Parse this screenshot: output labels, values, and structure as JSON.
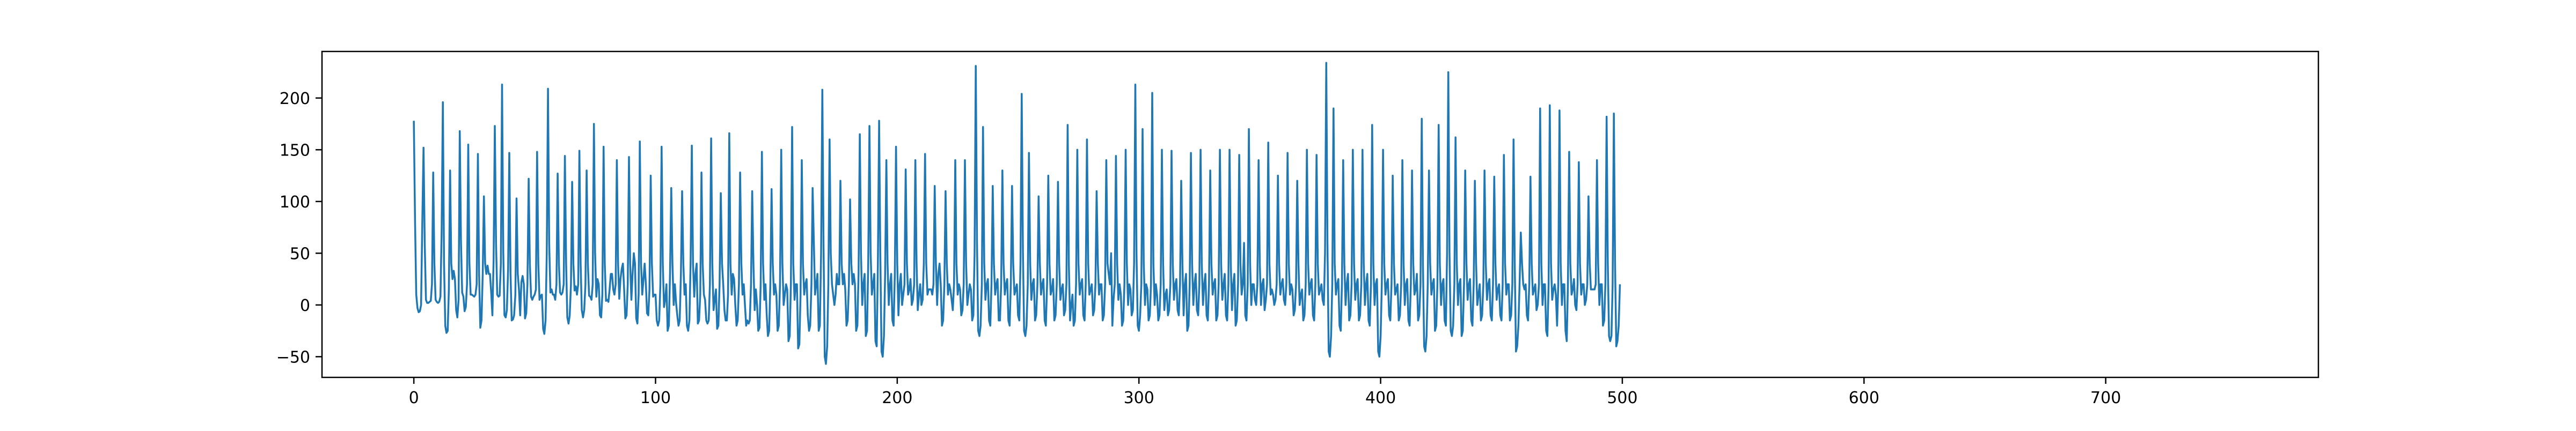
{
  "chart_data": {
    "type": "line",
    "title": "",
    "xlabel": "",
    "ylabel": "",
    "xlim": [
      -38,
      788
    ],
    "ylim": [
      -70,
      245
    ],
    "xticks": [
      0,
      100,
      200,
      300,
      400,
      500,
      600,
      700
    ],
    "xtick_labels": [
      "0",
      "100",
      "200",
      "300",
      "400",
      "500",
      "600",
      "700"
    ],
    "yticks": [
      -50,
      0,
      50,
      100,
      150,
      200
    ],
    "ytick_labels": [
      "−50",
      "0",
      "50",
      "100",
      "150",
      "200"
    ],
    "grid": false,
    "legend": "none",
    "line_color": "#1f77b4",
    "series": [
      {
        "x_start": 0,
        "x_step": 0.5,
        "values": [
          178,
          80,
          10,
          -3,
          -7,
          -6,
          0,
          80,
          152,
          60,
          5,
          2,
          2,
          3,
          4,
          20,
          128,
          40,
          5,
          3,
          2,
          3,
          8,
          70,
          196,
          40,
          -20,
          -27,
          -25,
          15,
          130,
          40,
          25,
          33,
          25,
          -5,
          -12,
          5,
          168,
          60,
          12,
          8,
          -6,
          -2,
          20,
          155,
          40,
          10,
          10,
          9,
          8,
          10,
          20,
          146,
          30,
          -22,
          -15,
          30,
          105,
          40,
          30,
          38,
          30,
          30,
          12,
          -10,
          45,
          173,
          60,
          10,
          8,
          9,
          40,
          213,
          50,
          -10,
          -12,
          -5,
          35,
          147,
          30,
          -15,
          -14,
          -10,
          10,
          103,
          30,
          15,
          -10,
          22,
          28,
          20,
          -13,
          -8,
          20,
          122,
          40,
          8,
          5,
          8,
          10,
          15,
          148,
          40,
          5,
          9,
          10,
          -23,
          -28,
          -15,
          50,
          209,
          60,
          12,
          15,
          10,
          10,
          5,
          20,
          127,
          40,
          12,
          10,
          12,
          20,
          144,
          40,
          -12,
          -18,
          -10,
          20,
          119,
          40,
          14,
          18,
          10,
          20,
          149,
          40,
          -5,
          -12,
          -5,
          20,
          130,
          40,
          9,
          8,
          5,
          20,
          175,
          50,
          8,
          25,
          20,
          -10,
          -12,
          10,
          153,
          40,
          4,
          5,
          3,
          15,
          30,
          30,
          15,
          10,
          20,
          140,
          40,
          6,
          25,
          35,
          40,
          15,
          -13,
          -10,
          20,
          143,
          40,
          5,
          30,
          50,
          40,
          -13,
          -18,
          10,
          158,
          40,
          10,
          25,
          40,
          20,
          -8,
          -10,
          15,
          125,
          40,
          8,
          10,
          10,
          -15,
          -20,
          -15,
          20,
          153,
          40,
          -2,
          5,
          20,
          -25,
          -20,
          30,
          113,
          40,
          0,
          20,
          2,
          -10,
          -20,
          -15,
          30,
          110,
          40,
          10,
          20,
          -20,
          -25,
          -15,
          40,
          154,
          40,
          8,
          30,
          40,
          -18,
          -15,
          10,
          128,
          40,
          10,
          5,
          -15,
          -18,
          -15,
          20,
          161,
          40,
          -5,
          5,
          15,
          -23,
          -20,
          20,
          108,
          40,
          20,
          -5,
          -15,
          -15,
          10,
          166,
          40,
          10,
          30,
          25,
          0,
          -20,
          -15,
          20,
          128,
          40,
          10,
          20,
          0,
          -20,
          -15,
          -18,
          -15,
          20,
          110,
          40,
          -5,
          15,
          0,
          -25,
          -22,
          20,
          148,
          40,
          5,
          20,
          -10,
          -30,
          -25,
          20,
          112,
          40,
          10,
          20,
          10,
          -25,
          -20,
          20,
          150,
          40,
          0,
          10,
          20,
          15,
          -35,
          -30,
          20,
          172,
          40,
          5,
          20,
          20,
          -42,
          -38,
          10,
          140,
          40,
          10,
          20,
          25,
          -10,
          -25,
          -20,
          20,
          113,
          60,
          10,
          20,
          30,
          -25,
          -20,
          50,
          208,
          60,
          -50,
          -57,
          -40,
          20,
          160,
          50,
          20,
          10,
          0,
          10,
          30,
          20,
          20,
          120,
          40,
          20,
          30,
          15,
          -20,
          -15,
          20,
          102,
          40,
          20,
          30,
          20,
          -25,
          -20,
          30,
          165,
          50,
          0,
          20,
          30,
          -30,
          -25,
          40,
          173,
          50,
          10,
          20,
          30,
          -35,
          -40,
          40,
          178,
          50,
          -45,
          -50,
          -30,
          30,
          140,
          40,
          0,
          20,
          30,
          -15,
          -20,
          30,
          153,
          40,
          -10,
          20,
          30,
          0,
          10,
          20,
          131,
          40,
          10,
          15,
          25,
          0,
          5,
          20,
          140,
          40,
          -5,
          10,
          20,
          0,
          5,
          40,
          146,
          40,
          10,
          15,
          15,
          15,
          10,
          20,
          115,
          40,
          0,
          30,
          40,
          20,
          -20,
          -15,
          20,
          110,
          40,
          10,
          20,
          15,
          5,
          -5,
          20,
          140,
          40,
          10,
          20,
          15,
          -10,
          -5,
          20,
          140,
          40,
          0,
          10,
          20,
          15,
          -15,
          -10,
          50,
          231,
          60,
          -25,
          -30,
          -20,
          20,
          172,
          40,
          5,
          20,
          25,
          -15,
          -20,
          20,
          115,
          40,
          10,
          20,
          25,
          -15,
          -15,
          20,
          130,
          40,
          10,
          20,
          25,
          -15,
          -20,
          20,
          115,
          40,
          10,
          15,
          20,
          -10,
          -15,
          40,
          204,
          50,
          -25,
          -30,
          -20,
          20,
          147,
          40,
          5,
          20,
          25,
          -15,
          -10,
          20,
          105,
          40,
          10,
          20,
          25,
          -15,
          -20,
          20,
          125,
          40,
          10,
          15,
          25,
          -15,
          -10,
          20,
          119,
          40,
          5,
          15,
          20,
          -10,
          -5,
          20,
          174,
          40,
          -15,
          0,
          10,
          -20,
          -15,
          20,
          150,
          40,
          10,
          20,
          25,
          -10,
          -15,
          20,
          160,
          40,
          10,
          15,
          20,
          -10,
          -5,
          20,
          110,
          40,
          10,
          20,
          20,
          -15,
          -10,
          20,
          140,
          40,
          30,
          20,
          50,
          -20,
          5,
          20,
          144,
          40,
          5,
          20,
          10,
          -20,
          -15,
          20,
          150,
          40,
          0,
          20,
          15,
          -10,
          -5,
          40,
          213,
          50,
          -20,
          -25,
          -10,
          20,
          170,
          40,
          0,
          20,
          15,
          -15,
          -10,
          20,
          205,
          40,
          0,
          20,
          10,
          -15,
          -10,
          20,
          150,
          40,
          -5,
          10,
          15,
          -10,
          -5,
          20,
          149,
          40,
          5,
          20,
          25,
          -5,
          -10,
          20,
          120,
          40,
          -10,
          20,
          30,
          -25,
          -20,
          20,
          147,
          40,
          0,
          20,
          30,
          -5,
          -10,
          20,
          150,
          40,
          0,
          20,
          30,
          -10,
          -15,
          20,
          130,
          40,
          10,
          20,
          25,
          -15,
          -10,
          20,
          150,
          40,
          5,
          20,
          30,
          -10,
          -15,
          20,
          150,
          40,
          -5,
          20,
          30,
          -20,
          -15,
          20,
          145,
          40,
          10,
          20,
          60,
          -10,
          -15,
          20,
          170,
          40,
          0,
          20,
          20,
          5,
          0,
          20,
          140,
          40,
          0,
          20,
          25,
          -5,
          5,
          20,
          157,
          40,
          10,
          15,
          10,
          0,
          5,
          20,
          125,
          40,
          10,
          20,
          25,
          5,
          0,
          20,
          147,
          40,
          10,
          20,
          15,
          -10,
          -5,
          20,
          120,
          40,
          0,
          10,
          15,
          -15,
          -10,
          20,
          150,
          40,
          10,
          20,
          25,
          -10,
          -15,
          20,
          145,
          40,
          10,
          15,
          20,
          5,
          0,
          50,
          234,
          60,
          -45,
          -50,
          -30,
          20,
          190,
          40,
          10,
          20,
          25,
          -20,
          -25,
          20,
          140,
          40,
          0,
          20,
          30,
          -15,
          -10,
          20,
          150,
          40,
          5,
          20,
          25,
          -15,
          -10,
          20,
          150,
          40,
          0,
          20,
          30,
          -15,
          -20,
          20,
          174,
          40,
          0,
          20,
          25,
          -45,
          -50,
          -30,
          20,
          150,
          40,
          10,
          20,
          25,
          -10,
          -15,
          20,
          125,
          40,
          10,
          15,
          20,
          -15,
          -10,
          20,
          140,
          40,
          0,
          20,
          25,
          -15,
          -20,
          20,
          130,
          40,
          10,
          15,
          30,
          -15,
          -10,
          20,
          180,
          40,
          -40,
          -45,
          -30,
          20,
          130,
          40,
          10,
          20,
          25,
          -25,
          -20,
          20,
          174,
          40,
          0,
          20,
          25,
          -15,
          -20,
          50,
          225,
          50,
          -25,
          -30,
          -20,
          20,
          162,
          40,
          0,
          20,
          25,
          -30,
          -25,
          20,
          130,
          40,
          5,
          20,
          25,
          -15,
          -20,
          20,
          120,
          40,
          0,
          10,
          20,
          -15,
          -10,
          20,
          130,
          40,
          5,
          20,
          25,
          -10,
          -15,
          20,
          124,
          40,
          5,
          15,
          20,
          -10,
          -15,
          20,
          145,
          40,
          10,
          20,
          20,
          -15,
          -10,
          20,
          160,
          40,
          -45,
          -40,
          -20,
          20,
          70,
          40,
          20,
          15,
          20,
          -10,
          -15,
          20,
          124,
          40,
          10,
          15,
          20,
          -5,
          0,
          20,
          190,
          40,
          0,
          20,
          20,
          -25,
          -30,
          20,
          193,
          40,
          5,
          15,
          20,
          10,
          -20,
          20,
          188,
          40,
          0,
          20,
          20,
          -25,
          -35,
          20,
          148,
          40,
          10,
          15,
          25,
          0,
          -5,
          20,
          138,
          40,
          10,
          20,
          20,
          0,
          5,
          20,
          105,
          40,
          15,
          15,
          15,
          15,
          20,
          140,
          40,
          0,
          20,
          20,
          -20,
          -15,
          20,
          182,
          40,
          -30,
          -35,
          -30,
          20,
          185,
          40,
          -40,
          -35,
          -20,
          20
        ]
      }
    ]
  }
}
